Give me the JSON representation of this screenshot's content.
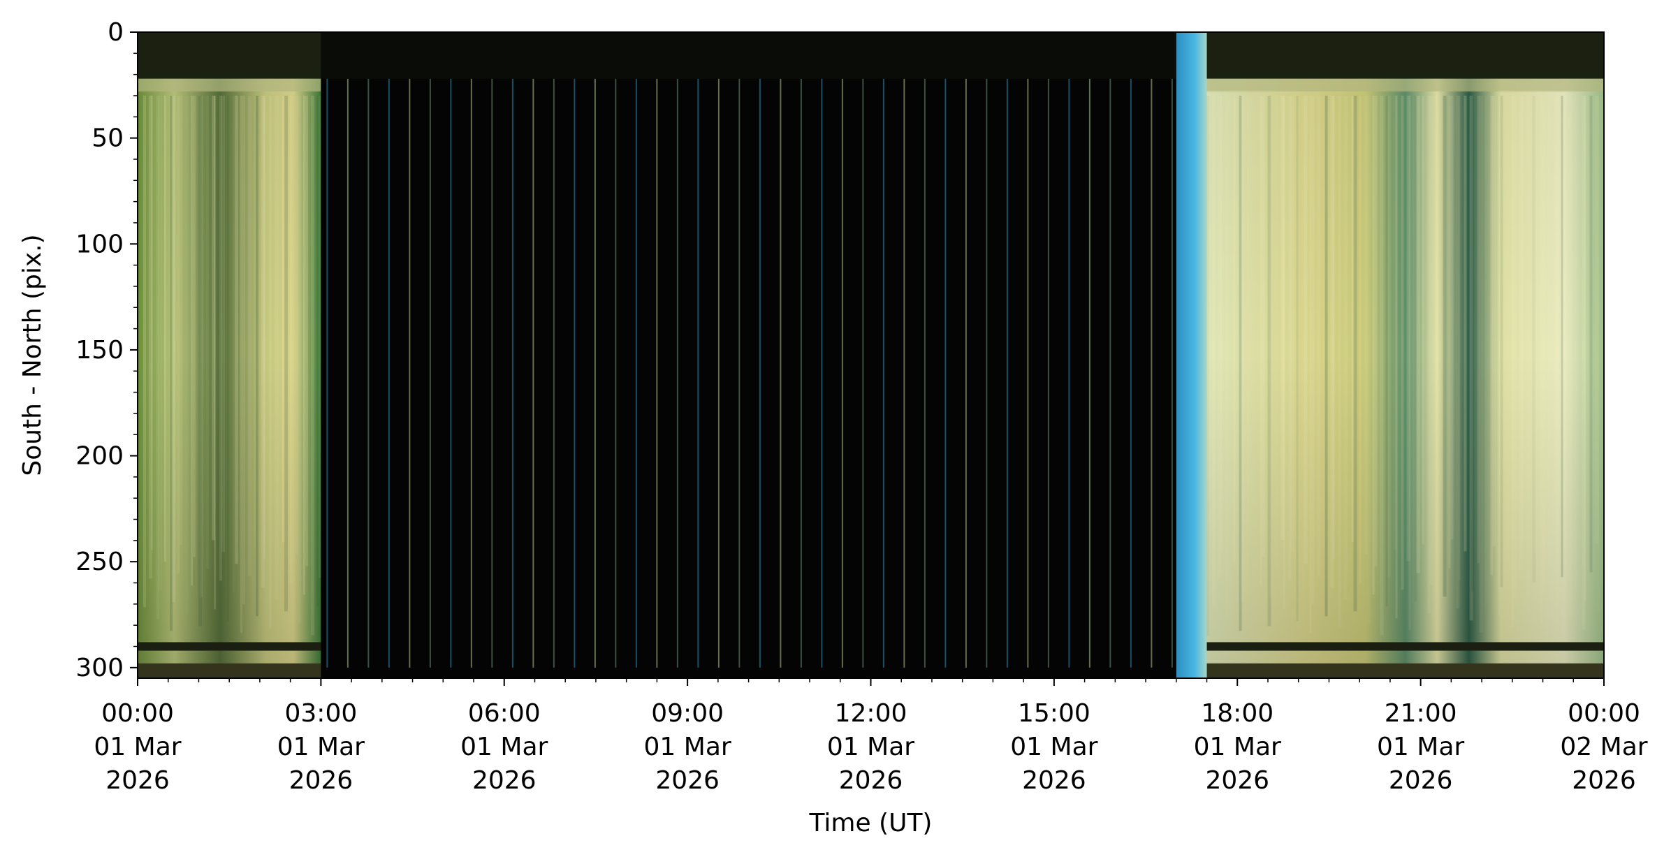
{
  "chart_data": {
    "type": "heatmap",
    "title": "",
    "xlabel": "Time (UT)",
    "ylabel": "South - North (pix.)",
    "x_range": [
      "2026-03-01T00:00",
      "2026-03-02T00:00"
    ],
    "ylim": [
      305,
      0
    ],
    "y_ticks": [
      0,
      50,
      100,
      150,
      200,
      250,
      300
    ],
    "x_ticks": [
      {
        "time": "2026-03-01T00:00",
        "lines": [
          "00:00",
          "01 Mar",
          "2026"
        ]
      },
      {
        "time": "2026-03-01T03:00",
        "lines": [
          "03:00",
          "01 Mar",
          "2026"
        ]
      },
      {
        "time": "2026-03-01T06:00",
        "lines": [
          "06:00",
          "01 Mar",
          "2026"
        ]
      },
      {
        "time": "2026-03-01T09:00",
        "lines": [
          "09:00",
          "01 Mar",
          "2026"
        ]
      },
      {
        "time": "2026-03-01T12:00",
        "lines": [
          "12:00",
          "01 Mar",
          "2026"
        ]
      },
      {
        "time": "2026-03-01T15:00",
        "lines": [
          "15:00",
          "01 Mar",
          "2026"
        ]
      },
      {
        "time": "2026-03-01T18:00",
        "lines": [
          "18:00",
          "01 Mar",
          "2026"
        ]
      },
      {
        "time": "2026-03-01T21:00",
        "lines": [
          "21:00",
          "01 Mar",
          "2026"
        ]
      },
      {
        "time": "2026-03-02T00:00",
        "lines": [
          "00:00",
          "02 Mar",
          "2026"
        ]
      }
    ],
    "segments": [
      {
        "start": "2026-03-01T00:00",
        "end": "2026-03-01T03:00",
        "condition": "daylight",
        "colors": [
          "#c9cf8a",
          "#6f8f45",
          "#4a7a3a"
        ]
      },
      {
        "start": "2026-03-01T03:00",
        "end": "2026-03-01T17:00",
        "condition": "night",
        "colors": [
          "#030403"
        ]
      },
      {
        "start": "2026-03-01T17:00",
        "end": "2026-03-01T17:30",
        "condition": "twilight",
        "colors": [
          "#3aa7d6"
        ]
      },
      {
        "start": "2026-03-01T17:30",
        "end": "2026-03-02T00:00",
        "condition": "daylight",
        "colors": [
          "#e8e8a8",
          "#d9d98a",
          "#3e7a5e"
        ]
      }
    ],
    "grid": false
  }
}
